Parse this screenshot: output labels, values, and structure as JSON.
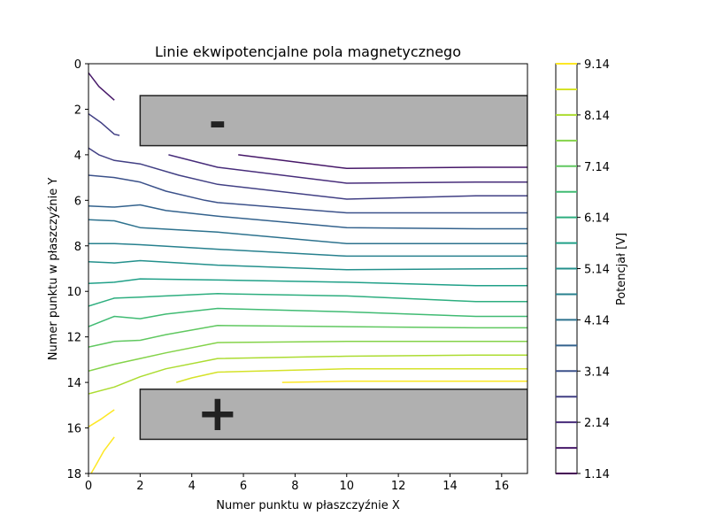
{
  "chart_data": {
    "type": "contour",
    "title": "Linie ekwipotencjalne pola magnetycznego",
    "xlabel": "Numer punktu w płaszczyźnie X",
    "ylabel": "Numer punktu w płaszczyźnie Y",
    "xlim": [
      0,
      17
    ],
    "ylim": [
      18,
      0
    ],
    "y_inverted": true,
    "grid": false,
    "xticks": [
      0,
      2,
      4,
      6,
      8,
      10,
      12,
      14,
      16
    ],
    "yticks": [
      0,
      2,
      4,
      6,
      8,
      10,
      12,
      14,
      16,
      18
    ],
    "colorbar": {
      "label": "Potencjał [V]",
      "colormap": "viridis",
      "range": [
        1.14,
        9.14
      ],
      "tick_labels": [
        "1.14",
        "2.14",
        "3.14",
        "4.14",
        "5.14",
        "6.14",
        "7.14",
        "8.14",
        "9.14"
      ],
      "tick_values": [
        1.14,
        2.14,
        3.14,
        4.14,
        5.14,
        6.14,
        7.14,
        8.14,
        9.14
      ],
      "levels": [
        1.14,
        1.64,
        2.14,
        2.64,
        3.14,
        3.64,
        4.14,
        4.64,
        5.14,
        5.64,
        6.14,
        6.64,
        7.14,
        7.64,
        8.14,
        8.64,
        9.14
      ]
    },
    "electrodes": [
      {
        "name": "negative",
        "symbol": "-",
        "x": [
          2,
          17
        ],
        "y": [
          1.4,
          3.6
        ],
        "color": "#b0b0b0"
      },
      {
        "name": "positive",
        "symbol": "+",
        "x": [
          2,
          17
        ],
        "y": [
          14.3,
          16.5
        ],
        "color": "#b0b0b0"
      }
    ],
    "series": [
      {
        "level": 1.64,
        "segments": [
          [
            [
              5.8,
              4.0
            ],
            [
              10,
              4.6
            ],
            [
              15,
              4.55
            ],
            [
              17,
              4.55
            ]
          ],
          [
            [
              0.0,
              0.4
            ],
            [
              0.4,
              1.0
            ],
            [
              1.0,
              1.6
            ]
          ]
        ]
      },
      {
        "level": 2.14,
        "segments": [
          [
            [
              3.1,
              4.0
            ],
            [
              5,
              4.55
            ],
            [
              10,
              5.25
            ],
            [
              15,
              5.2
            ],
            [
              17,
              5.2
            ]
          ]
        ]
      },
      {
        "level": 2.64,
        "segments": [
          [
            [
              0.0,
              2.2
            ],
            [
              0.5,
              2.6
            ],
            [
              1.0,
              3.1
            ],
            [
              1.2,
              3.15
            ]
          ],
          [
            [
              0.0,
              3.7
            ],
            [
              0.4,
              4.0
            ],
            [
              1.0,
              4.25
            ],
            [
              2.0,
              4.4
            ],
            [
              3.5,
              4.9
            ],
            [
              5,
              5.3
            ],
            [
              10,
              5.95
            ],
            [
              15,
              5.8
            ],
            [
              17,
              5.8
            ]
          ]
        ]
      },
      {
        "level": 3.14,
        "segments": [
          [
            [
              0.0,
              4.9
            ],
            [
              1.0,
              5.0
            ],
            [
              2.0,
              5.2
            ],
            [
              3.0,
              5.6
            ],
            [
              4.5,
              6.0
            ],
            [
              5.0,
              6.1
            ],
            [
              10,
              6.55
            ],
            [
              17,
              6.55
            ]
          ]
        ]
      },
      {
        "level": 3.64,
        "segments": [
          [
            [
              0.0,
              6.25
            ],
            [
              1.0,
              6.3
            ],
            [
              2.0,
              6.2
            ],
            [
              3.0,
              6.45
            ],
            [
              5.0,
              6.7
            ],
            [
              10,
              7.2
            ],
            [
              15,
              7.25
            ],
            [
              17,
              7.25
            ]
          ]
        ]
      },
      {
        "level": 4.14,
        "segments": [
          [
            [
              0.0,
              6.85
            ],
            [
              1.0,
              6.9
            ],
            [
              2.0,
              7.2
            ],
            [
              5,
              7.4
            ],
            [
              10,
              7.9
            ],
            [
              17,
              7.9
            ]
          ]
        ]
      },
      {
        "level": 4.64,
        "segments": [
          [
            [
              0.0,
              7.9
            ],
            [
              1.0,
              7.9
            ],
            [
              2.0,
              7.95
            ],
            [
              5,
              8.15
            ],
            [
              10,
              8.45
            ],
            [
              17,
              8.45
            ]
          ]
        ]
      },
      {
        "level": 5.14,
        "segments": [
          [
            [
              0.0,
              8.7
            ],
            [
              1.0,
              8.75
            ],
            [
              2.0,
              8.65
            ],
            [
              5,
              8.85
            ],
            [
              10,
              9.05
            ],
            [
              17,
              9.0
            ]
          ]
        ]
      },
      {
        "level": 5.64,
        "segments": [
          [
            [
              0.0,
              9.65
            ],
            [
              1.0,
              9.6
            ],
            [
              2.0,
              9.45
            ],
            [
              5,
              9.5
            ],
            [
              10,
              9.6
            ],
            [
              15,
              9.75
            ],
            [
              17,
              9.75
            ]
          ]
        ]
      },
      {
        "level": 6.14,
        "segments": [
          [
            [
              0.0,
              10.65
            ],
            [
              1.0,
              10.3
            ],
            [
              2.0,
              10.25
            ],
            [
              3.0,
              10.2
            ],
            [
              5,
              10.1
            ],
            [
              10,
              10.2
            ],
            [
              15,
              10.45
            ],
            [
              17,
              10.45
            ]
          ]
        ]
      },
      {
        "level": 6.64,
        "segments": [
          [
            [
              0.0,
              11.55
            ],
            [
              1.0,
              11.1
            ],
            [
              2.0,
              11.2
            ],
            [
              3.0,
              11.0
            ],
            [
              5,
              10.75
            ],
            [
              10,
              10.9
            ],
            [
              15,
              11.1
            ],
            [
              17,
              11.1
            ]
          ]
        ]
      },
      {
        "level": 7.14,
        "segments": [
          [
            [
              0.0,
              12.45
            ],
            [
              1.0,
              12.2
            ],
            [
              2.0,
              12.15
            ],
            [
              3.0,
              11.9
            ],
            [
              5,
              11.5
            ],
            [
              10,
              11.55
            ],
            [
              15,
              11.6
            ],
            [
              17,
              11.6
            ]
          ]
        ]
      },
      {
        "level": 7.64,
        "segments": [
          [
            [
              0.0,
              13.5
            ],
            [
              1.0,
              13.2
            ],
            [
              2.0,
              12.95
            ],
            [
              3.0,
              12.7
            ],
            [
              5,
              12.25
            ],
            [
              10,
              12.2
            ],
            [
              17,
              12.2
            ]
          ]
        ]
      },
      {
        "level": 8.14,
        "segments": [
          [
            [
              0.0,
              14.5
            ],
            [
              1.0,
              14.2
            ],
            [
              2.0,
              13.75
            ],
            [
              3.0,
              13.4
            ],
            [
              5,
              12.95
            ],
            [
              10,
              12.85
            ],
            [
              15,
              12.8
            ],
            [
              17,
              12.8
            ]
          ]
        ]
      },
      {
        "level": 8.64,
        "segments": [
          [
            [
              3.4,
              14.0
            ],
            [
              4.0,
              13.8
            ],
            [
              5,
              13.55
            ],
            [
              10,
              13.4
            ],
            [
              17,
              13.4
            ]
          ]
        ]
      },
      {
        "level": 9.14,
        "segments": [
          [
            [
              7.5,
              14.0
            ],
            [
              10,
              13.95
            ],
            [
              17,
              13.95
            ]
          ],
          [
            [
              0.0,
              15.95
            ],
            [
              0.5,
              15.6
            ],
            [
              1.0,
              15.2
            ]
          ],
          [
            [
              0.0,
              18.2
            ],
            [
              0.3,
              17.6
            ],
            [
              0.6,
              17.0
            ],
            [
              1.0,
              16.4
            ]
          ]
        ]
      }
    ]
  }
}
